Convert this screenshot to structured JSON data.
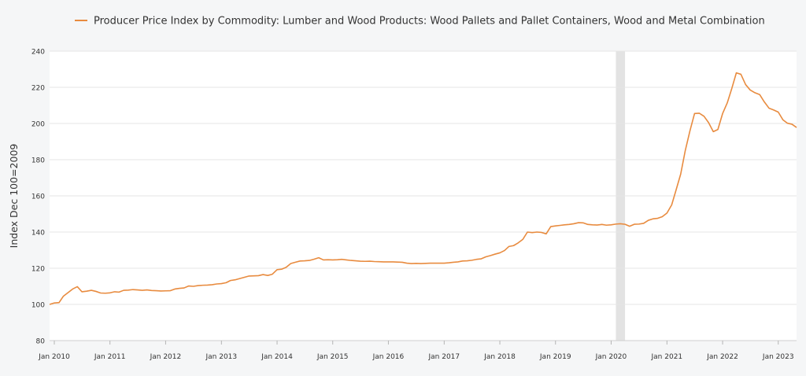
{
  "chart_data": {
    "type": "line",
    "title": "",
    "xlabel": "",
    "ylabel": "Index Dec 100=2009",
    "ylim": [
      80,
      240
    ],
    "xlim": [
      "2009-12-01",
      "2023-05-01"
    ],
    "y_ticks": [
      80,
      100,
      120,
      140,
      160,
      180,
      200,
      220,
      240
    ],
    "x_ticks": [
      {
        "date": "2010-01-01",
        "label": "Jan 2010"
      },
      {
        "date": "2011-01-01",
        "label": "Jan 2011"
      },
      {
        "date": "2012-01-01",
        "label": "Jan 2012"
      },
      {
        "date": "2013-01-01",
        "label": "Jan 2013"
      },
      {
        "date": "2014-01-01",
        "label": "Jan 2014"
      },
      {
        "date": "2015-01-01",
        "label": "Jan 2015"
      },
      {
        "date": "2016-01-01",
        "label": "Jan 2016"
      },
      {
        "date": "2017-01-01",
        "label": "Jan 2017"
      },
      {
        "date": "2018-01-01",
        "label": "Jan 2018"
      },
      {
        "date": "2019-01-01",
        "label": "Jan 2019"
      },
      {
        "date": "2020-01-01",
        "label": "Jan 2020"
      },
      {
        "date": "2021-01-01",
        "label": "Jan 2021"
      },
      {
        "date": "2022-01-01",
        "label": "Jan 2022"
      },
      {
        "date": "2023-01-01",
        "label": "Jan 2023"
      }
    ],
    "grid": true,
    "legend_position": "top",
    "recession_shading": [
      {
        "start": "2020-02-01",
        "end": "2020-04-01"
      }
    ],
    "series": [
      {
        "name": "Producer Price Index by Commodity: Lumber and Wood Products: Wood Pallets and Pallet Containers, Wood and Metal Combination",
        "color": "#e88b3f",
        "points": [
          [
            "2009-12-01",
            100.0
          ],
          [
            "2010-01-01",
            100.8
          ],
          [
            "2010-02-01",
            101.0
          ],
          [
            "2010-03-01",
            104.5
          ],
          [
            "2010-04-01",
            106.5
          ],
          [
            "2010-05-01",
            108.5
          ],
          [
            "2010-06-01",
            109.8
          ],
          [
            "2010-07-01",
            107.0
          ],
          [
            "2010-08-01",
            107.3
          ],
          [
            "2010-09-01",
            107.8
          ],
          [
            "2010-10-01",
            107.2
          ],
          [
            "2010-11-01",
            106.3
          ],
          [
            "2010-12-01",
            106.2
          ],
          [
            "2011-01-01",
            106.4
          ],
          [
            "2011-02-01",
            107.0
          ],
          [
            "2011-03-01",
            106.8
          ],
          [
            "2011-04-01",
            107.8
          ],
          [
            "2011-05-01",
            107.9
          ],
          [
            "2011-06-01",
            108.2
          ],
          [
            "2011-07-01",
            108.0
          ],
          [
            "2011-08-01",
            107.8
          ],
          [
            "2011-09-01",
            108.0
          ],
          [
            "2011-10-01",
            107.7
          ],
          [
            "2011-11-01",
            107.6
          ],
          [
            "2011-12-01",
            107.4
          ],
          [
            "2012-01-01",
            107.5
          ],
          [
            "2012-02-01",
            107.6
          ],
          [
            "2012-03-01",
            108.5
          ],
          [
            "2012-04-01",
            108.9
          ],
          [
            "2012-05-01",
            109.1
          ],
          [
            "2012-06-01",
            110.2
          ],
          [
            "2012-07-01",
            110.0
          ],
          [
            "2012-08-01",
            110.4
          ],
          [
            "2012-09-01",
            110.6
          ],
          [
            "2012-10-01",
            110.7
          ],
          [
            "2012-11-01",
            110.9
          ],
          [
            "2012-12-01",
            111.3
          ],
          [
            "2013-01-01",
            111.5
          ],
          [
            "2013-02-01",
            112.0
          ],
          [
            "2013-03-01",
            113.2
          ],
          [
            "2013-04-01",
            113.6
          ],
          [
            "2013-05-01",
            114.3
          ],
          [
            "2013-06-01",
            115.0
          ],
          [
            "2013-07-01",
            115.7
          ],
          [
            "2013-08-01",
            115.8
          ],
          [
            "2013-09-01",
            115.9
          ],
          [
            "2013-10-01",
            116.5
          ],
          [
            "2013-11-01",
            116.0
          ],
          [
            "2013-12-01",
            116.7
          ],
          [
            "2014-01-01",
            119.2
          ],
          [
            "2014-02-01",
            119.5
          ],
          [
            "2014-03-01",
            120.5
          ],
          [
            "2014-04-01",
            122.6
          ],
          [
            "2014-05-01",
            123.3
          ],
          [
            "2014-06-01",
            124.0
          ],
          [
            "2014-07-01",
            124.1
          ],
          [
            "2014-08-01",
            124.3
          ],
          [
            "2014-09-01",
            125.0
          ],
          [
            "2014-10-01",
            125.8
          ],
          [
            "2014-11-01",
            124.6
          ],
          [
            "2014-12-01",
            124.7
          ],
          [
            "2015-01-01",
            124.6
          ],
          [
            "2015-02-01",
            124.7
          ],
          [
            "2015-03-01",
            124.9
          ],
          [
            "2015-04-01",
            124.6
          ],
          [
            "2015-05-01",
            124.3
          ],
          [
            "2015-06-01",
            124.1
          ],
          [
            "2015-07-01",
            123.9
          ],
          [
            "2015-08-01",
            123.8
          ],
          [
            "2015-09-01",
            123.9
          ],
          [
            "2015-10-01",
            123.7
          ],
          [
            "2015-11-01",
            123.6
          ],
          [
            "2015-12-01",
            123.5
          ],
          [
            "2016-01-01",
            123.5
          ],
          [
            "2016-02-01",
            123.5
          ],
          [
            "2016-03-01",
            123.4
          ],
          [
            "2016-04-01",
            123.3
          ],
          [
            "2016-05-01",
            122.8
          ],
          [
            "2016-06-01",
            122.6
          ],
          [
            "2016-07-01",
            122.7
          ],
          [
            "2016-08-01",
            122.6
          ],
          [
            "2016-09-01",
            122.7
          ],
          [
            "2016-10-01",
            122.8
          ],
          [
            "2016-11-01",
            122.8
          ],
          [
            "2016-12-01",
            122.8
          ],
          [
            "2017-01-01",
            122.8
          ],
          [
            "2017-02-01",
            123.0
          ],
          [
            "2017-03-01",
            123.3
          ],
          [
            "2017-04-01",
            123.5
          ],
          [
            "2017-05-01",
            124.0
          ],
          [
            "2017-06-01",
            124.1
          ],
          [
            "2017-07-01",
            124.4
          ],
          [
            "2017-08-01",
            124.9
          ],
          [
            "2017-09-01",
            125.2
          ],
          [
            "2017-10-01",
            126.3
          ],
          [
            "2017-11-01",
            127.0
          ],
          [
            "2017-12-01",
            127.8
          ],
          [
            "2018-01-01",
            128.5
          ],
          [
            "2018-02-01",
            129.8
          ],
          [
            "2018-03-01",
            132.0
          ],
          [
            "2018-04-01",
            132.5
          ],
          [
            "2018-05-01",
            134.0
          ],
          [
            "2018-06-01",
            136.0
          ],
          [
            "2018-07-01",
            140.0
          ],
          [
            "2018-08-01",
            139.7
          ],
          [
            "2018-09-01",
            140.0
          ],
          [
            "2018-10-01",
            139.8
          ],
          [
            "2018-11-01",
            139.0
          ],
          [
            "2018-12-01",
            143.0
          ],
          [
            "2019-01-01",
            143.4
          ],
          [
            "2019-02-01",
            143.7
          ],
          [
            "2019-03-01",
            144.0
          ],
          [
            "2019-04-01",
            144.2
          ],
          [
            "2019-05-01",
            144.6
          ],
          [
            "2019-06-01",
            145.2
          ],
          [
            "2019-07-01",
            145.1
          ],
          [
            "2019-08-01",
            144.2
          ],
          [
            "2019-09-01",
            144.0
          ],
          [
            "2019-10-01",
            143.9
          ],
          [
            "2019-11-01",
            144.2
          ],
          [
            "2019-12-01",
            143.8
          ],
          [
            "2020-01-01",
            144.0
          ],
          [
            "2020-02-01",
            144.4
          ],
          [
            "2020-03-01",
            144.6
          ],
          [
            "2020-04-01",
            144.3
          ],
          [
            "2020-05-01",
            143.2
          ],
          [
            "2020-06-01",
            144.3
          ],
          [
            "2020-07-01",
            144.4
          ],
          [
            "2020-08-01",
            144.8
          ],
          [
            "2020-09-01",
            146.5
          ],
          [
            "2020-10-01",
            147.3
          ],
          [
            "2020-11-01",
            147.6
          ],
          [
            "2020-12-01",
            148.5
          ],
          [
            "2021-01-01",
            150.5
          ],
          [
            "2021-02-01",
            155.0
          ],
          [
            "2021-03-01",
            163.0
          ],
          [
            "2021-04-01",
            172.0
          ],
          [
            "2021-05-01",
            185.0
          ],
          [
            "2021-06-01",
            196.0
          ],
          [
            "2021-07-01",
            205.5
          ],
          [
            "2021-08-01",
            205.7
          ],
          [
            "2021-09-01",
            204.0
          ],
          [
            "2021-10-01",
            200.5
          ],
          [
            "2021-11-01",
            195.5
          ],
          [
            "2021-12-01",
            196.7
          ],
          [
            "2022-01-01",
            205.5
          ],
          [
            "2022-02-01",
            211.5
          ],
          [
            "2022-03-01",
            219.0
          ],
          [
            "2022-04-01",
            228.0
          ],
          [
            "2022-05-01",
            227.2
          ],
          [
            "2022-06-01",
            221.5
          ],
          [
            "2022-07-01",
            218.5
          ],
          [
            "2022-08-01",
            217.0
          ],
          [
            "2022-09-01",
            216.0
          ],
          [
            "2022-10-01",
            212.0
          ],
          [
            "2022-11-01",
            208.5
          ],
          [
            "2022-12-01",
            207.5
          ],
          [
            "2023-01-01",
            206.3
          ],
          [
            "2023-02-01",
            202.0
          ],
          [
            "2023-03-01",
            200.2
          ],
          [
            "2023-04-01",
            199.6
          ],
          [
            "2023-05-01",
            197.8
          ]
        ]
      }
    ]
  }
}
